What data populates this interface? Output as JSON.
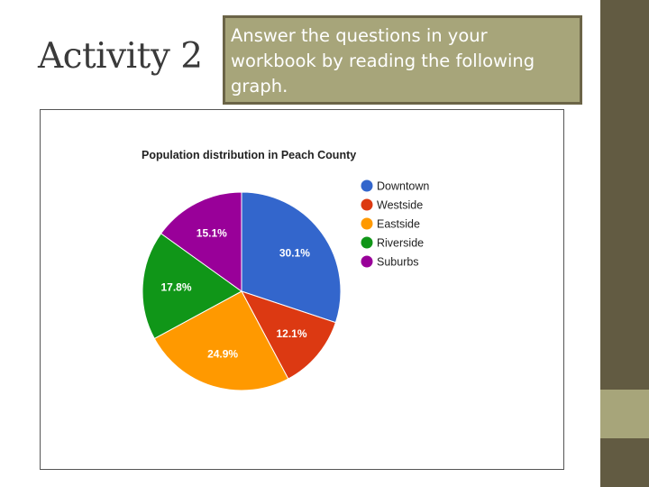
{
  "slide": {
    "title": "Activity 2",
    "instructions": "Answer the questions in your workbook by reading the following graph."
  },
  "chart_data": {
    "type": "pie",
    "title": "Population distribution in Peach County",
    "categories": [
      "Downtown",
      "Westside",
      "Eastside",
      "Riverside",
      "Suburbs"
    ],
    "values": [
      30.1,
      12.1,
      24.9,
      17.8,
      15.1
    ],
    "labels": [
      "30.1%",
      "12.1%",
      "24.9%",
      "17.8%",
      "15.1%"
    ],
    "colors": [
      "#3366cc",
      "#dc3912",
      "#ff9900",
      "#109618",
      "#990099"
    ],
    "legend": "right"
  }
}
